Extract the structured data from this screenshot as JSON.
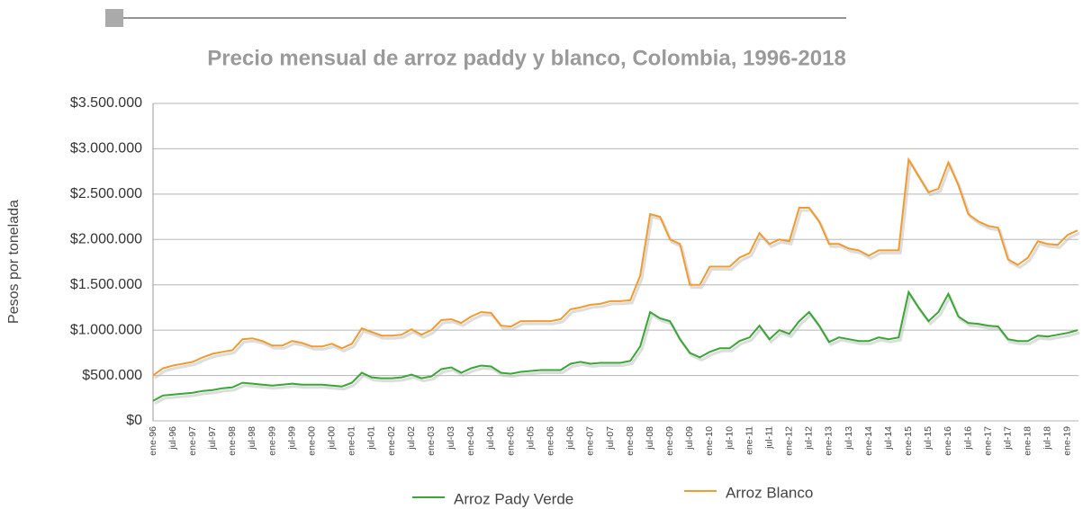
{
  "chart_data": {
    "type": "line",
    "title": "Precio mensual de arroz paddy y blanco, Colombia, 1996-2018",
    "y_label": "Pesos por tonelada",
    "categories": [
      "ene-96",
      null,
      "jul-96",
      null,
      "ene-97",
      null,
      "jul-97",
      null,
      "ene-98",
      null,
      "jul-98",
      null,
      "ene-99",
      null,
      "jul-99",
      null,
      "ene-00",
      null,
      "jul-00",
      null,
      "ene-01",
      null,
      "jul-01",
      null,
      "ene-02",
      null,
      "jul-02",
      null,
      "ene-03",
      null,
      "jul-03",
      null,
      "ene-04",
      null,
      "jul-04",
      null,
      "ene-05",
      null,
      "jul-05",
      null,
      "ene-06",
      null,
      "jul-06",
      null,
      "ene-07",
      null,
      "jul-07",
      null,
      "ene-08",
      null,
      "jul-08",
      null,
      "ene-09",
      null,
      "jul-09",
      null,
      "ene-10",
      null,
      "jul-10",
      null,
      "ene-11",
      null,
      "jul-11",
      null,
      "ene-12",
      null,
      "jul-12",
      null,
      "ene-13",
      null,
      "jul-13",
      null,
      "ene-14",
      null,
      "jul-14",
      null,
      "ene-15",
      null,
      "jul-15",
      null,
      "ene-16",
      null,
      "jul-16",
      null,
      "ene-17",
      null,
      "jul-17",
      null,
      "ene-18",
      null,
      "jul-18",
      null,
      "ene-19",
      null
    ],
    "series": [
      {
        "name": "Arroz Pady Verde",
        "color": "#3aa635",
        "values": [
          220000,
          280000,
          290000,
          300000,
          310000,
          330000,
          340000,
          360000,
          370000,
          420000,
          410000,
          400000,
          390000,
          400000,
          410000,
          400000,
          400000,
          400000,
          390000,
          380000,
          420000,
          530000,
          480000,
          470000,
          470000,
          480000,
          510000,
          470000,
          490000,
          570000,
          590000,
          530000,
          580000,
          610000,
          600000,
          530000,
          520000,
          540000,
          550000,
          560000,
          560000,
          560000,
          630000,
          650000,
          630000,
          640000,
          640000,
          640000,
          660000,
          820000,
          1200000,
          1130000,
          1100000,
          900000,
          750000,
          700000,
          760000,
          800000,
          800000,
          880000,
          920000,
          1050000,
          900000,
          1000000,
          960000,
          1100000,
          1200000,
          1050000,
          870000,
          920000,
          900000,
          880000,
          880000,
          920000,
          900000,
          920000,
          1420000,
          1250000,
          1100000,
          1200000,
          1400000,
          1150000,
          1080000,
          1070000,
          1050000,
          1040000,
          900000,
          880000,
          880000,
          940000,
          930000,
          950000,
          970000,
          1000000
        ]
      },
      {
        "name": "Arroz Blanco",
        "color": "#f29a2e",
        "values": [
          500000,
          580000,
          610000,
          630000,
          650000,
          700000,
          740000,
          760000,
          780000,
          900000,
          910000,
          880000,
          830000,
          830000,
          880000,
          860000,
          820000,
          820000,
          850000,
          800000,
          850000,
          1020000,
          980000,
          940000,
          940000,
          950000,
          1010000,
          950000,
          1000000,
          1110000,
          1120000,
          1080000,
          1150000,
          1200000,
          1190000,
          1050000,
          1040000,
          1100000,
          1100000,
          1100000,
          1100000,
          1120000,
          1230000,
          1250000,
          1280000,
          1290000,
          1320000,
          1320000,
          1330000,
          1600000,
          2280000,
          2250000,
          2000000,
          1950000,
          1500000,
          1500000,
          1700000,
          1700000,
          1700000,
          1800000,
          1850000,
          2070000,
          1950000,
          2000000,
          1980000,
          2350000,
          2350000,
          2200000,
          1950000,
          1950000,
          1900000,
          1880000,
          1820000,
          1880000,
          1880000,
          1880000,
          2880000,
          2700000,
          2520000,
          2560000,
          2850000,
          2600000,
          2280000,
          2200000,
          2150000,
          2130000,
          1780000,
          1720000,
          1800000,
          1980000,
          1950000,
          1940000,
          2050000,
          2100000
        ]
      }
    ],
    "ylim": [
      0,
      3500000
    ],
    "yticks": [
      {
        "value": 0,
        "label": "$0"
      },
      {
        "value": 500000,
        "label": "$500.000"
      },
      {
        "value": 1000000,
        "label": "$1.000.000"
      },
      {
        "value": 1500000,
        "label": "$1.500.000"
      },
      {
        "value": 2000000,
        "label": "$2.000.000"
      },
      {
        "value": 2500000,
        "label": "$2.500.000"
      },
      {
        "value": 3000000,
        "label": "$3.000.000"
      },
      {
        "value": 3500000,
        "label": "$3.500.000"
      }
    ],
    "grid": true
  }
}
